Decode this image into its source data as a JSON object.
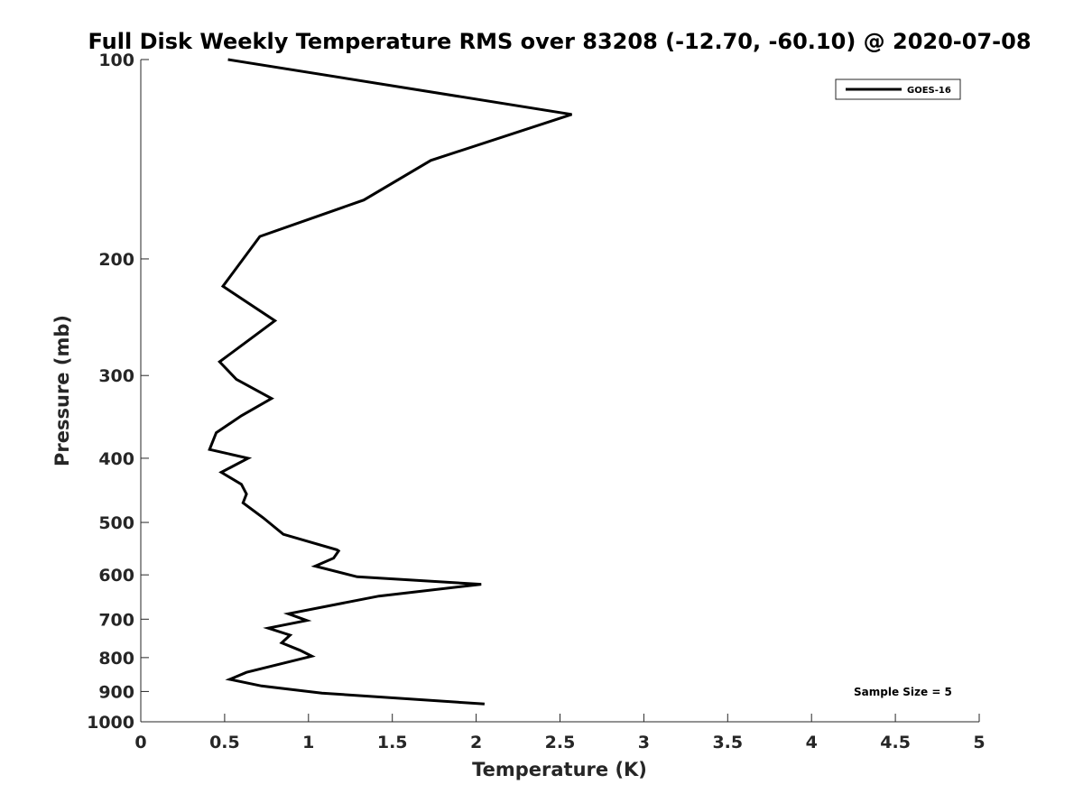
{
  "chart_data": {
    "type": "line",
    "title": "Full Disk Weekly Temperature RMS over 83208 (-12.70, -60.10) @ 2020-07-08",
    "xlabel": "Temperature (K)",
    "ylabel": "Pressure (mb)",
    "xlim": [
      0,
      5
    ],
    "ylim": [
      100,
      1000
    ],
    "y_scale": "log",
    "y_reversed": true,
    "x_ticks": [
      "0",
      "0.5",
      "1",
      "1.5",
      "2",
      "2.5",
      "3",
      "3.5",
      "4",
      "4.5",
      "5"
    ],
    "y_ticks": [
      "100",
      "200",
      "300",
      "400",
      "500",
      "600",
      "700",
      "800",
      "900",
      "1000"
    ],
    "legend_position": "top-right",
    "annotation": "Sample Size = 5",
    "series": [
      {
        "name": "GOES-16",
        "color": "#000000",
        "points": [
          {
            "x": 0.52,
            "p": 100
          },
          {
            "x": 2.57,
            "p": 121
          },
          {
            "x": 1.73,
            "p": 142
          },
          {
            "x": 1.33,
            "p": 163
          },
          {
            "x": 0.71,
            "p": 185
          },
          {
            "x": 0.49,
            "p": 220
          },
          {
            "x": 0.8,
            "p": 248
          },
          {
            "x": 0.62,
            "p": 268
          },
          {
            "x": 0.47,
            "p": 286
          },
          {
            "x": 0.57,
            "p": 304
          },
          {
            "x": 0.78,
            "p": 325
          },
          {
            "x": 0.6,
            "p": 345
          },
          {
            "x": 0.45,
            "p": 366
          },
          {
            "x": 0.41,
            "p": 388
          },
          {
            "x": 0.64,
            "p": 400
          },
          {
            "x": 0.48,
            "p": 420
          },
          {
            "x": 0.6,
            "p": 438
          },
          {
            "x": 0.63,
            "p": 453
          },
          {
            "x": 0.61,
            "p": 467
          },
          {
            "x": 0.73,
            "p": 492
          },
          {
            "x": 0.85,
            "p": 521
          },
          {
            "x": 1.17,
            "p": 550
          },
          {
            "x": 1.18,
            "p": 552
          },
          {
            "x": 1.15,
            "p": 566
          },
          {
            "x": 1.04,
            "p": 582
          },
          {
            "x": 1.29,
            "p": 604
          },
          {
            "x": 2.03,
            "p": 620
          },
          {
            "x": 1.42,
            "p": 646
          },
          {
            "x": 0.88,
            "p": 687
          },
          {
            "x": 0.99,
            "p": 703
          },
          {
            "x": 0.76,
            "p": 722
          },
          {
            "x": 0.89,
            "p": 740
          },
          {
            "x": 0.84,
            "p": 760
          },
          {
            "x": 0.95,
            "p": 780
          },
          {
            "x": 1.02,
            "p": 796
          },
          {
            "x": 0.63,
            "p": 842
          },
          {
            "x": 0.53,
            "p": 863
          },
          {
            "x": 0.72,
            "p": 883
          },
          {
            "x": 1.08,
            "p": 905
          },
          {
            "x": 2.05,
            "p": 940
          }
        ]
      }
    ]
  }
}
